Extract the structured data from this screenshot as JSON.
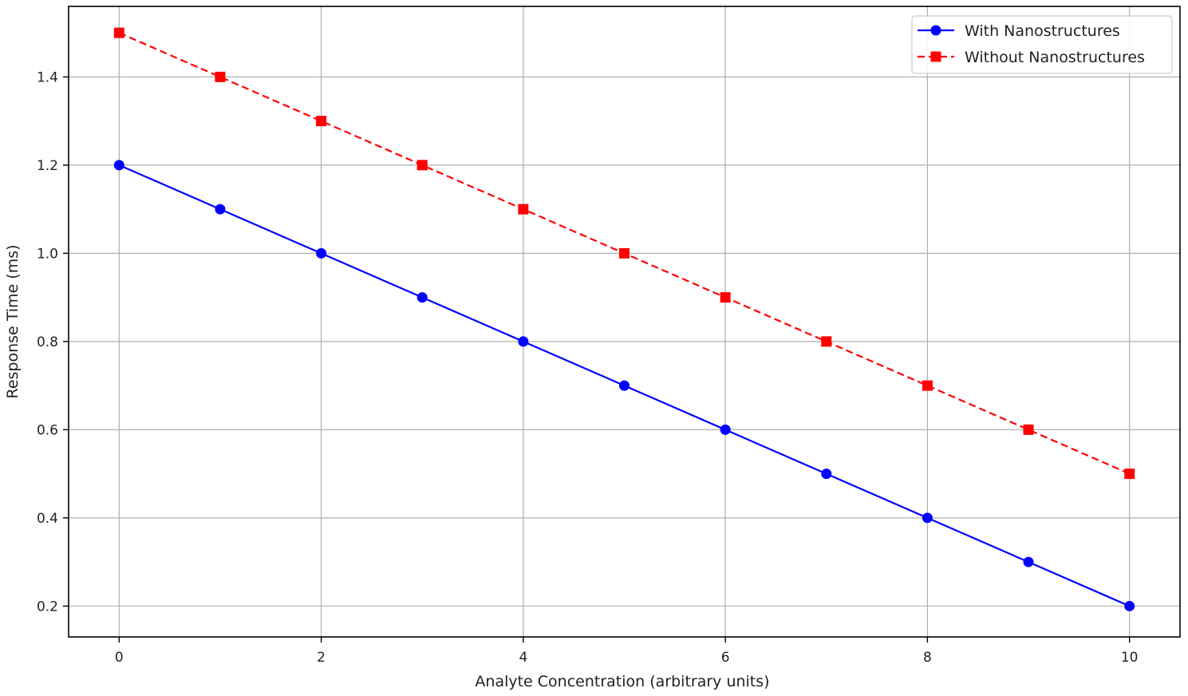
{
  "chart_data": {
    "type": "line",
    "title": "",
    "xlabel": "Analyte Concentration (arbitrary units)",
    "ylabel": "Response Time (ms)",
    "x": [
      0,
      1,
      2,
      3,
      4,
      5,
      6,
      7,
      8,
      9,
      10
    ],
    "xlim": [
      -0.5,
      10.5
    ],
    "ylim": [
      0.13,
      1.56
    ],
    "xticks": [
      0,
      2,
      4,
      6,
      8,
      10
    ],
    "yticks": [
      0.2,
      0.4,
      0.6,
      0.8,
      1.0,
      1.2,
      1.4
    ],
    "xtick_labels": [
      "0",
      "2",
      "4",
      "6",
      "8",
      "10"
    ],
    "ytick_labels": [
      "0.2",
      "0.4",
      "0.6",
      "0.8",
      "1.0",
      "1.2",
      "1.4"
    ],
    "grid": true,
    "legend_position": "top-right",
    "series": [
      {
        "name": "With Nanostructures",
        "values": [
          1.2,
          1.1,
          1.0,
          0.9,
          0.8,
          0.7,
          0.6,
          0.5,
          0.4,
          0.3,
          0.2
        ],
        "color": "#0000ff",
        "marker": "circle",
        "line_style": "solid"
      },
      {
        "name": "Without Nanostructures",
        "values": [
          1.5,
          1.4,
          1.3,
          1.2,
          1.1,
          1.0,
          0.9,
          0.8,
          0.7,
          0.6,
          0.5
        ],
        "color": "#ff0000",
        "marker": "square",
        "line_style": "dashed"
      }
    ]
  }
}
